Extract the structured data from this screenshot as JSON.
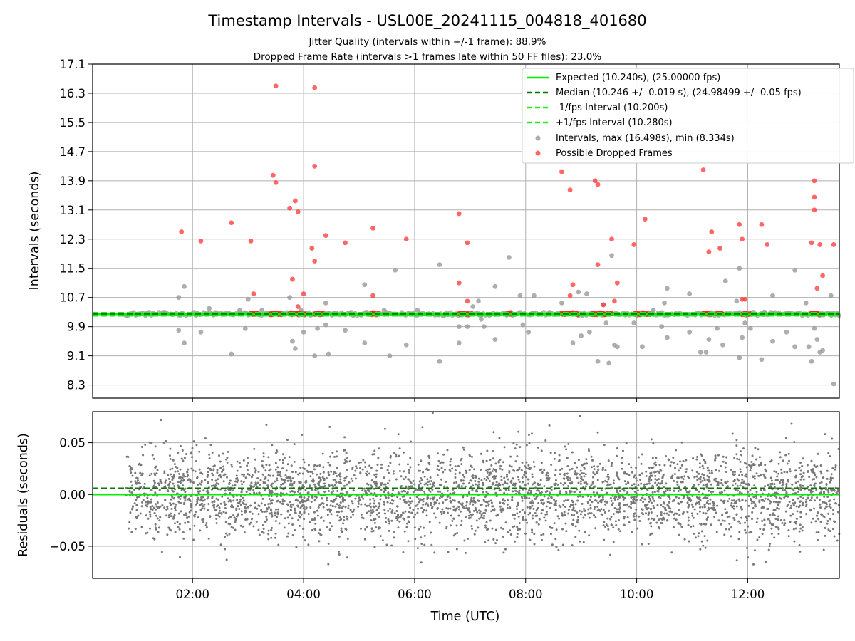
{
  "chart_data": [
    {
      "type": "scatter",
      "panel": "intervals",
      "title": "Timestamp Intervals - USL00E_20241115_004818_401680",
      "subtitle_lines": [
        "Jitter Quality (intervals within +/-1 frame): 88.9%",
        "Dropped Frame Rate (intervals >1 frames late within 50 FF files): 23.0%"
      ],
      "ylabel": "Intervals (seconds)",
      "ylim": [
        7.94,
        17.1
      ],
      "yticks": [
        "8.3",
        "9.1",
        "9.9",
        "10.7",
        "11.5",
        "12.3",
        "13.1",
        "13.9",
        "14.7",
        "15.5",
        "16.3",
        "17.1"
      ],
      "ytick_values": [
        8.3,
        9.1,
        9.9,
        10.7,
        11.5,
        12.3,
        13.1,
        13.9,
        14.7,
        15.5,
        16.3,
        17.1
      ],
      "xlim_hours": [
        0.2,
        13.65
      ],
      "grid": true,
      "legend_position": "top-right",
      "legend": [
        {
          "label": "Expected (10.240s), (25.00000 fps)",
          "style": "solid",
          "color": "#00ee00"
        },
        {
          "label": "Median (10.246 +/- 0.019 s), (24.98499 +/- 0.05 fps)",
          "style": "dashed",
          "color": "#007a00"
        },
        {
          "label": "-1/fps Interval (10.200s)",
          "style": "dashed",
          "color": "#22ee22"
        },
        {
          "label": "+1/fps Interval (10.280s)",
          "style": "dashed",
          "color": "#22ee22"
        },
        {
          "label": "Intervals, max (16.498s), min (8.334s)",
          "style": "marker",
          "color": "#9a9a9a"
        },
        {
          "label": "Possible Dropped Frames",
          "style": "marker",
          "color": "#ff4040"
        }
      ],
      "reference_lines": {
        "expected": 10.24,
        "median": 10.246,
        "minus_one_fps": 10.2,
        "plus_one_fps": 10.28
      },
      "interval_band": {
        "x_start": 0.8,
        "x_end": 13.65,
        "y_low": 10.2,
        "y_high": 10.3
      },
      "outliers": [
        {
          "x": 1.75,
          "y": 10.7
        },
        {
          "x": 1.85,
          "y": 11.0
        },
        {
          "x": 1.85,
          "y": 9.45
        },
        {
          "x": 1.75,
          "y": 9.8
        },
        {
          "x": 2.15,
          "y": 9.75
        },
        {
          "x": 2.3,
          "y": 10.4
        },
        {
          "x": 2.7,
          "y": 9.15
        },
        {
          "x": 2.85,
          "y": 10.35
        },
        {
          "x": 2.95,
          "y": 9.85
        },
        {
          "x": 3.0,
          "y": 10.65
        },
        {
          "x": 3.25,
          "y": 10.35
        },
        {
          "x": 3.75,
          "y": 10.7
        },
        {
          "x": 3.8,
          "y": 9.5
        },
        {
          "x": 3.85,
          "y": 9.3
        },
        {
          "x": 3.95,
          "y": 10.35
        },
        {
          "x": 4.0,
          "y": 9.75
        },
        {
          "x": 4.2,
          "y": 9.1
        },
        {
          "x": 4.25,
          "y": 9.85
        },
        {
          "x": 4.4,
          "y": 10.55
        },
        {
          "x": 4.4,
          "y": 9.95
        },
        {
          "x": 4.45,
          "y": 9.15
        },
        {
          "x": 4.75,
          "y": 9.8
        },
        {
          "x": 5.1,
          "y": 11.05
        },
        {
          "x": 5.1,
          "y": 9.45
        },
        {
          "x": 5.45,
          "y": 10.35
        },
        {
          "x": 5.55,
          "y": 9.1
        },
        {
          "x": 5.65,
          "y": 11.45
        },
        {
          "x": 5.85,
          "y": 9.4
        },
        {
          "x": 6.05,
          "y": 10.35
        },
        {
          "x": 6.45,
          "y": 11.6
        },
        {
          "x": 6.45,
          "y": 8.95
        },
        {
          "x": 6.8,
          "y": 9.9
        },
        {
          "x": 6.8,
          "y": 9.45
        },
        {
          "x": 6.95,
          "y": 9.9
        },
        {
          "x": 7.05,
          "y": 10.45
        },
        {
          "x": 7.15,
          "y": 10.6
        },
        {
          "x": 7.2,
          "y": 10.1
        },
        {
          "x": 7.25,
          "y": 9.9
        },
        {
          "x": 7.45,
          "y": 11.0
        },
        {
          "x": 7.45,
          "y": 9.55
        },
        {
          "x": 7.7,
          "y": 11.8
        },
        {
          "x": 7.9,
          "y": 10.75
        },
        {
          "x": 7.95,
          "y": 9.95
        },
        {
          "x": 8.05,
          "y": 9.75
        },
        {
          "x": 8.15,
          "y": 10.75
        },
        {
          "x": 8.65,
          "y": 10.55
        },
        {
          "x": 8.85,
          "y": 9.45
        },
        {
          "x": 8.95,
          "y": 10.85
        },
        {
          "x": 9.0,
          "y": 9.65
        },
        {
          "x": 9.1,
          "y": 10.8
        },
        {
          "x": 9.15,
          "y": 9.75
        },
        {
          "x": 9.3,
          "y": 8.95
        },
        {
          "x": 9.4,
          "y": 10.5
        },
        {
          "x": 9.45,
          "y": 10.0
        },
        {
          "x": 9.5,
          "y": 8.9
        },
        {
          "x": 9.55,
          "y": 11.85
        },
        {
          "x": 9.6,
          "y": 9.4
        },
        {
          "x": 9.65,
          "y": 9.35
        },
        {
          "x": 9.95,
          "y": 10.0
        },
        {
          "x": 10.1,
          "y": 9.35
        },
        {
          "x": 10.3,
          "y": 10.35
        },
        {
          "x": 10.5,
          "y": 10.55
        },
        {
          "x": 10.55,
          "y": 10.95
        },
        {
          "x": 10.55,
          "y": 9.6
        },
        {
          "x": 10.45,
          "y": 9.9
        },
        {
          "x": 10.95,
          "y": 10.8
        },
        {
          "x": 10.95,
          "y": 9.75
        },
        {
          "x": 11.15,
          "y": 9.2
        },
        {
          "x": 11.25,
          "y": 9.2
        },
        {
          "x": 11.3,
          "y": 9.55
        },
        {
          "x": 11.45,
          "y": 9.85
        },
        {
          "x": 11.55,
          "y": 9.4
        },
        {
          "x": 11.6,
          "y": 11.15
        },
        {
          "x": 11.8,
          "y": 10.6
        },
        {
          "x": 11.85,
          "y": 11.5
        },
        {
          "x": 11.9,
          "y": 9.6
        },
        {
          "x": 11.85,
          "y": 9.05
        },
        {
          "x": 11.95,
          "y": 10.0
        },
        {
          "x": 12.05,
          "y": 9.85
        },
        {
          "x": 12.25,
          "y": 9.0
        },
        {
          "x": 12.3,
          "y": 10.3
        },
        {
          "x": 12.45,
          "y": 10.75
        },
        {
          "x": 12.45,
          "y": 9.5
        },
        {
          "x": 12.7,
          "y": 9.75
        },
        {
          "x": 12.85,
          "y": 11.45
        },
        {
          "x": 12.85,
          "y": 9.35
        },
        {
          "x": 13.05,
          "y": 10.55
        },
        {
          "x": 13.1,
          "y": 9.35
        },
        {
          "x": 13.15,
          "y": 8.95
        },
        {
          "x": 13.2,
          "y": 9.85
        },
        {
          "x": 13.25,
          "y": 9.55
        },
        {
          "x": 13.3,
          "y": 9.2
        },
        {
          "x": 13.35,
          "y": 9.25
        },
        {
          "x": 13.5,
          "y": 10.75
        },
        {
          "x": 13.55,
          "y": 8.33
        }
      ],
      "dropped_frames": [
        {
          "x": 1.8,
          "y": 12.5
        },
        {
          "x": 2.15,
          "y": 12.25
        },
        {
          "x": 2.7,
          "y": 12.75
        },
        {
          "x": 3.05,
          "y": 12.25
        },
        {
          "x": 3.1,
          "y": 10.8
        },
        {
          "x": 3.45,
          "y": 14.05
        },
        {
          "x": 3.5,
          "y": 16.5
        },
        {
          "x": 3.5,
          "y": 13.85
        },
        {
          "x": 3.75,
          "y": 13.15
        },
        {
          "x": 3.8,
          "y": 11.2
        },
        {
          "x": 3.85,
          "y": 13.35
        },
        {
          "x": 3.9,
          "y": 13.05
        },
        {
          "x": 3.9,
          "y": 10.45
        },
        {
          "x": 4.0,
          "y": 10.8
        },
        {
          "x": 4.15,
          "y": 12.05
        },
        {
          "x": 4.2,
          "y": 16.45
        },
        {
          "x": 4.2,
          "y": 14.3
        },
        {
          "x": 4.2,
          "y": 11.7
        },
        {
          "x": 4.4,
          "y": 12.4
        },
        {
          "x": 4.75,
          "y": 12.2
        },
        {
          "x": 5.25,
          "y": 12.6
        },
        {
          "x": 5.25,
          "y": 10.75
        },
        {
          "x": 5.85,
          "y": 12.3
        },
        {
          "x": 6.8,
          "y": 13.0
        },
        {
          "x": 6.8,
          "y": 11.1
        },
        {
          "x": 6.95,
          "y": 12.2
        },
        {
          "x": 6.95,
          "y": 10.6
        },
        {
          "x": 8.65,
          "y": 14.15
        },
        {
          "x": 8.8,
          "y": 13.65
        },
        {
          "x": 8.8,
          "y": 10.75
        },
        {
          "x": 8.85,
          "y": 11.05
        },
        {
          "x": 9.25,
          "y": 13.9
        },
        {
          "x": 9.3,
          "y": 13.8
        },
        {
          "x": 9.3,
          "y": 11.6
        },
        {
          "x": 9.4,
          "y": 10.5
        },
        {
          "x": 9.55,
          "y": 12.3
        },
        {
          "x": 9.6,
          "y": 10.6
        },
        {
          "x": 9.65,
          "y": 11.1
        },
        {
          "x": 9.95,
          "y": 12.15
        },
        {
          "x": 10.15,
          "y": 12.85
        },
        {
          "x": 11.2,
          "y": 14.2
        },
        {
          "x": 11.3,
          "y": 11.95
        },
        {
          "x": 11.35,
          "y": 12.5
        },
        {
          "x": 11.5,
          "y": 12.05
        },
        {
          "x": 11.85,
          "y": 12.7
        },
        {
          "x": 11.9,
          "y": 12.3
        },
        {
          "x": 11.9,
          "y": 10.65
        },
        {
          "x": 11.95,
          "y": 10.65
        },
        {
          "x": 12.25,
          "y": 12.7
        },
        {
          "x": 12.35,
          "y": 12.15
        },
        {
          "x": 13.15,
          "y": 12.2
        },
        {
          "x": 13.2,
          "y": 13.9
        },
        {
          "x": 13.2,
          "y": 13.45
        },
        {
          "x": 13.2,
          "y": 13.1
        },
        {
          "x": 13.25,
          "y": 10.95
        },
        {
          "x": 13.3,
          "y": 12.15
        },
        {
          "x": 13.35,
          "y": 11.3
        },
        {
          "x": 13.55,
          "y": 12.15
        }
      ],
      "dropped_on_band": [
        {
          "x_start": 3.05,
          "x_end": 3.2
        },
        {
          "x_start": 3.4,
          "x_end": 3.6
        },
        {
          "x_start": 3.75,
          "x_end": 4.05
        },
        {
          "x_start": 4.2,
          "x_end": 4.35
        },
        {
          "x_start": 5.2,
          "x_end": 5.35
        },
        {
          "x_start": 6.8,
          "x_end": 7.05
        },
        {
          "x_start": 7.65,
          "x_end": 7.75
        },
        {
          "x_start": 8.65,
          "x_end": 8.95
        },
        {
          "x_start": 9.2,
          "x_end": 9.55
        },
        {
          "x_start": 9.95,
          "x_end": 10.25
        },
        {
          "x_start": 11.2,
          "x_end": 11.35
        },
        {
          "x_start": 11.45,
          "x_end": 11.55
        },
        {
          "x_start": 11.9,
          "x_end": 12.05
        },
        {
          "x_start": 13.15,
          "x_end": 13.3
        }
      ]
    },
    {
      "type": "scatter",
      "panel": "residuals",
      "xlabel": "Time (UTC)",
      "ylabel": "Residuals (seconds)",
      "ylim": [
        -0.081,
        0.08
      ],
      "yticks": [
        "−0.05",
        "0.00",
        "0.05"
      ],
      "ytick_values": [
        -0.05,
        0.0,
        0.05
      ],
      "xlim_hours": [
        0.2,
        13.65
      ],
      "xticks": [
        "02:00",
        "04:00",
        "06:00",
        "08:00",
        "10:00",
        "12:00"
      ],
      "xtick_values": [
        2,
        4,
        6,
        8,
        10,
        12
      ],
      "grid": true,
      "reference_lines": {
        "expected": 0.0,
        "median": 0.006
      },
      "residual_cloud": {
        "x_start": 0.8,
        "x_end": 13.65,
        "point_count": 3600,
        "mean": 0.0,
        "std": 0.021,
        "clip": [
          -0.081,
          0.08
        ],
        "color": "#787878"
      }
    }
  ]
}
